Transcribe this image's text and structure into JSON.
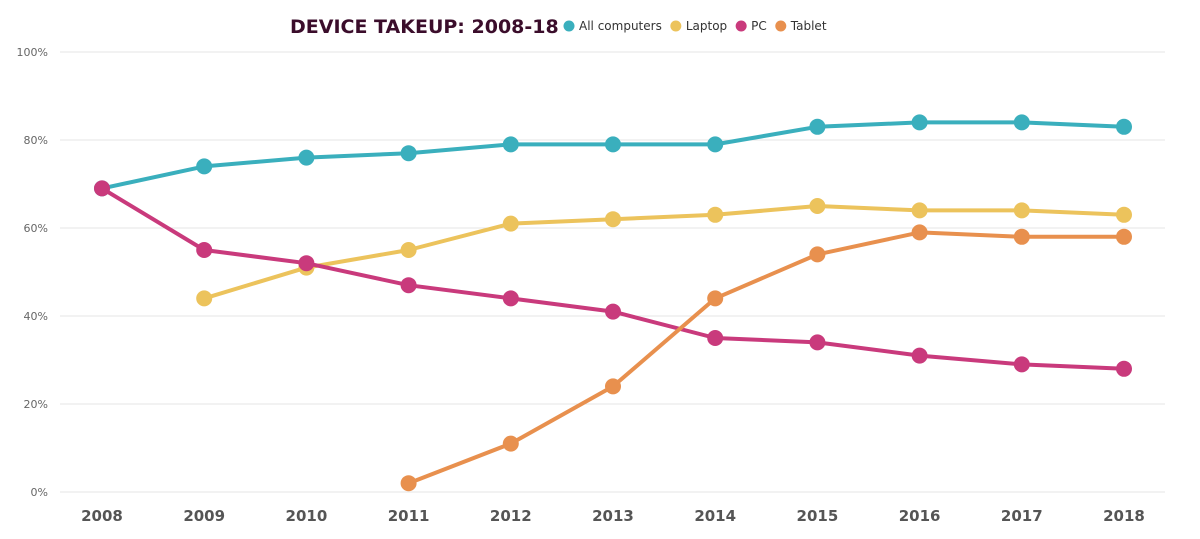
{
  "chart_data": {
    "type": "line",
    "title": "DEVICE TAKEUP: 2008-18",
    "xlabel": "",
    "ylabel": "",
    "x": [
      "2008",
      "2009",
      "2010",
      "2011",
      "2012",
      "2013",
      "2014",
      "2015",
      "2016",
      "2017",
      "2018"
    ],
    "ylim": [
      0,
      100
    ],
    "yticks": [
      "0%",
      "20%",
      "40%",
      "60%",
      "80%",
      "100%"
    ],
    "ytick_values": [
      0,
      20,
      40,
      60,
      80,
      100
    ],
    "grid": true,
    "legend_position": "top",
    "series": [
      {
        "name": "All computers",
        "color": "#3aafbd",
        "values": [
          69,
          74,
          76,
          77,
          79,
          79,
          79,
          83,
          84,
          84,
          83
        ]
      },
      {
        "name": "Laptop",
        "color": "#ecc35c",
        "values": [
          null,
          44,
          51,
          55,
          61,
          62,
          63,
          65,
          64,
          64,
          63
        ]
      },
      {
        "name": "PC",
        "color": "#c93a7c",
        "values": [
          69,
          55,
          52,
          47,
          44,
          41,
          35,
          34,
          31,
          29,
          28
        ]
      },
      {
        "name": "Tablet",
        "color": "#e8904e",
        "values": [
          null,
          null,
          null,
          2,
          11,
          24,
          44,
          54,
          59,
          58,
          58
        ]
      }
    ]
  }
}
